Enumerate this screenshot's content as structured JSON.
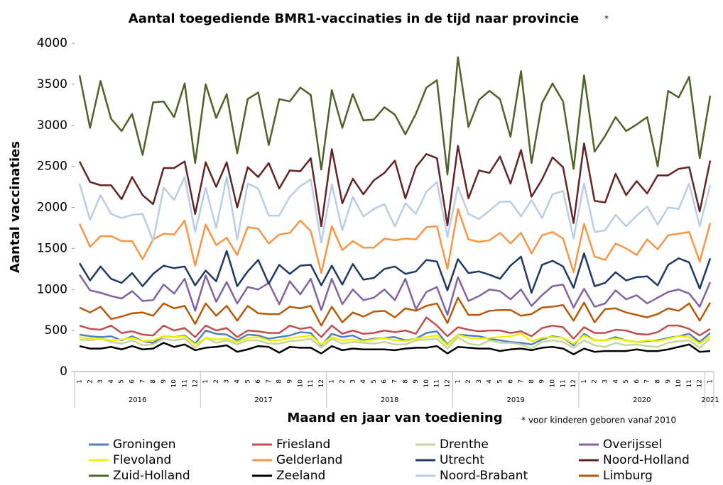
{
  "chart_data": {
    "type": "line",
    "title": "Aantal toegediende BMR1-vaccinaties in de tijd naar provincie",
    "title_mark": "*",
    "x_label": "Maand en jaar van toediening",
    "y_label": "Aantal vaccinaties",
    "footnote": "* voor kinderen geboren vanaf 2010",
    "categories": [
      "1",
      "2",
      "3",
      "4",
      "5",
      "6",
      "7",
      "8",
      "9",
      "10",
      "11",
      "12",
      "1",
      "2",
      "3",
      "4",
      "5",
      "6",
      "7",
      "8",
      "9",
      "10",
      "11",
      "12",
      "1",
      "2",
      "3",
      "4",
      "5",
      "6",
      "7",
      "8",
      "9",
      "10",
      "11",
      "12",
      "1",
      "2",
      "3",
      "4",
      "5",
      "6",
      "7",
      "8",
      "9",
      "10",
      "11",
      "12",
      "1",
      "2",
      "3",
      "4",
      "5",
      "6",
      "7",
      "8",
      "9",
      "10",
      "11",
      "12",
      "1"
    ],
    "year_groups": [
      "2016",
      "2017",
      "2018",
      "2019",
      "2020",
      "2021"
    ],
    "ylim": [
      0,
      4000
    ],
    "yticks": [
      0,
      500,
      1000,
      1500,
      2000,
      2500,
      3000,
      3500,
      4000
    ],
    "series": [
      {
        "name": "Groningen",
        "color": "#4f81bd",
        "values": [
          450,
          430,
          420,
          430,
          380,
          430,
          370,
          350,
          430,
          420,
          440,
          340,
          500,
          460,
          450,
          380,
          450,
          440,
          400,
          420,
          440,
          480,
          470,
          320,
          460,
          420,
          440,
          380,
          400,
          410,
          420,
          380,
          400,
          470,
          490,
          330,
          450,
          440,
          430,
          400,
          380,
          360,
          350,
          330,
          390,
          430,
          410,
          320,
          460,
          380,
          380,
          420,
          380,
          360,
          370,
          380,
          410,
          430,
          460,
          360,
          470
        ]
      },
      {
        "name": "Friesland",
        "color": "#c0504d",
        "values": [
          560,
          520,
          510,
          560,
          470,
          490,
          450,
          440,
          560,
          500,
          530,
          420,
          560,
          500,
          530,
          420,
          500,
          490,
          470,
          470,
          560,
          520,
          540,
          420,
          560,
          460,
          500,
          460,
          470,
          500,
          480,
          500,
          460,
          660,
          560,
          430,
          540,
          510,
          490,
          500,
          500,
          470,
          490,
          430,
          530,
          560,
          540,
          400,
          540,
          470,
          470,
          510,
          500,
          460,
          450,
          480,
          560,
          560,
          520,
          440,
          520
        ]
      },
      {
        "name": "Drenthe",
        "color": "#c3d69b",
        "values": [
          390,
          380,
          400,
          360,
          340,
          380,
          320,
          330,
          400,
          380,
          400,
          290,
          410,
          350,
          380,
          330,
          380,
          380,
          340,
          340,
          370,
          380,
          400,
          290,
          400,
          340,
          360,
          350,
          340,
          360,
          330,
          330,
          380,
          390,
          400,
          280,
          420,
          340,
          320,
          380,
          350,
          350,
          330,
          280,
          360,
          380,
          360,
          290,
          380,
          320,
          300,
          350,
          320,
          330,
          310,
          300,
          350,
          370,
          380,
          290,
          400
        ]
      },
      {
        "name": "Overijssel",
        "color": "#8064a2",
        "values": [
          1180,
          990,
          960,
          920,
          890,
          980,
          860,
          870,
          1060,
          950,
          1130,
          740,
          1170,
          850,
          1090,
          830,
          1030,
          1000,
          1080,
          820,
          1100,
          940,
          1130,
          750,
          1130,
          820,
          1000,
          870,
          900,
          1000,
          870,
          1130,
          760,
          970,
          1030,
          690,
          1150,
          860,
          920,
          1000,
          980,
          880,
          1000,
          800,
          930,
          1040,
          1060,
          780,
          1010,
          790,
          830,
          990,
          880,
          930,
          830,
          900,
          970,
          1000,
          950,
          790,
          1090
        ]
      },
      {
        "name": "Flevoland",
        "color": "#f0f000",
        "values": [
          420,
          400,
          400,
          380,
          390,
          410,
          370,
          380,
          430,
          420,
          430,
          330,
          410,
          390,
          400,
          360,
          410,
          420,
          380,
          380,
          410,
          420,
          440,
          330,
          420,
          380,
          390,
          370,
          390,
          410,
          380,
          370,
          400,
          420,
          440,
          320,
          450,
          410,
          400,
          410,
          420,
          430,
          460,
          370,
          410,
          420,
          410,
          340,
          440,
          380,
          380,
          400,
          380,
          360,
          380,
          370,
          400,
          430,
          420,
          340,
          430
        ]
      },
      {
        "name": "Gelderland",
        "color": "#f79646",
        "values": [
          1800,
          1520,
          1650,
          1650,
          1590,
          1590,
          1370,
          1610,
          1680,
          1670,
          1840,
          1290,
          1790,
          1540,
          1630,
          1420,
          1760,
          1740,
          1560,
          1670,
          1690,
          1840,
          1710,
          1200,
          1770,
          1480,
          1590,
          1510,
          1510,
          1620,
          1600,
          1620,
          1610,
          1760,
          1770,
          1250,
          1980,
          1610,
          1580,
          1600,
          1690,
          1560,
          1690,
          1440,
          1660,
          1700,
          1620,
          1210,
          1800,
          1400,
          1360,
          1560,
          1500,
          1420,
          1610,
          1490,
          1660,
          1680,
          1700,
          1340,
          1810
        ]
      },
      {
        "name": "Utrecht",
        "color": "#1f3864",
        "values": [
          1320,
          1110,
          1280,
          1130,
          1080,
          1200,
          1040,
          1190,
          1290,
          1260,
          1280,
          1050,
          1230,
          1100,
          1470,
          1040,
          1220,
          1360,
          1070,
          1300,
          1190,
          1290,
          1300,
          1050,
          1290,
          1060,
          1310,
          1120,
          1140,
          1250,
          1280,
          1190,
          1220,
          1360,
          1340,
          990,
          1370,
          1200,
          1220,
          1180,
          1130,
          1290,
          1400,
          960,
          1300,
          1350,
          1280,
          1020,
          1440,
          1040,
          1080,
          1210,
          1110,
          1150,
          1160,
          1050,
          1300,
          1380,
          1330,
          1010,
          1380
        ]
      },
      {
        "name": "Noord-Holland",
        "color": "#632523",
        "values": [
          2560,
          2310,
          2270,
          2270,
          2100,
          2370,
          2150,
          2040,
          2480,
          2480,
          2560,
          1920,
          2550,
          2250,
          2550,
          2000,
          2490,
          2370,
          2540,
          2230,
          2450,
          2440,
          2600,
          1770,
          2710,
          2050,
          2350,
          2160,
          2330,
          2420,
          2570,
          2110,
          2490,
          2650,
          2600,
          1780,
          2750,
          2110,
          2450,
          2420,
          2620,
          2290,
          2700,
          2130,
          2340,
          2610,
          2490,
          1810,
          2780,
          2080,
          2060,
          2410,
          2150,
          2320,
          2170,
          2390,
          2390,
          2470,
          2490,
          1950,
          2570
        ]
      },
      {
        "name": "Zuid-Holland",
        "color": "#4f6228",
        "values": [
          3610,
          2970,
          3540,
          3080,
          2930,
          3140,
          2640,
          3280,
          3290,
          3100,
          3510,
          2540,
          3500,
          3090,
          3380,
          2660,
          3320,
          3400,
          2760,
          3320,
          3290,
          3460,
          3370,
          2460,
          3430,
          2970,
          3380,
          3060,
          3070,
          3220,
          3130,
          2890,
          3140,
          3460,
          3550,
          2400,
          3830,
          2980,
          3310,
          3420,
          3320,
          2860,
          3660,
          2540,
          3270,
          3510,
          3290,
          2470,
          3610,
          2680,
          2870,
          3100,
          2930,
          3010,
          3100,
          2500,
          3420,
          3340,
          3590,
          2600,
          3360
        ]
      },
      {
        "name": "Zeeland",
        "color": "#000000",
        "values": [
          310,
          280,
          280,
          300,
          270,
          310,
          270,
          280,
          350,
          300,
          330,
          260,
          290,
          300,
          320,
          240,
          270,
          310,
          300,
          230,
          300,
          290,
          290,
          220,
          310,
          260,
          280,
          270,
          270,
          270,
          260,
          280,
          290,
          290,
          310,
          220,
          300,
          290,
          280,
          280,
          250,
          270,
          280,
          260,
          290,
          300,
          280,
          210,
          280,
          240,
          250,
          250,
          250,
          270,
          250,
          250,
          270,
          300,
          330,
          240,
          250
        ]
      },
      {
        "name": "Noord-Brabant",
        "color": "#b9cde5",
        "values": [
          2290,
          1850,
          2150,
          1920,
          1870,
          1910,
          1920,
          1590,
          2240,
          2090,
          2370,
          1700,
          2240,
          1750,
          2370,
          1610,
          2290,
          2230,
          1900,
          1900,
          2130,
          2260,
          2340,
          1570,
          2280,
          1720,
          2130,
          1890,
          1980,
          2040,
          1770,
          2050,
          1920,
          2190,
          2310,
          1640,
          2250,
          1920,
          1860,
          1960,
          2070,
          2070,
          1890,
          2090,
          1870,
          2160,
          2200,
          1620,
          2290,
          1700,
          1720,
          1910,
          1770,
          1900,
          2010,
          1790,
          2000,
          1980,
          2290,
          1770,
          2270
        ]
      },
      {
        "name": "Limburg",
        "color": "#b45a0c",
        "values": [
          780,
          720,
          790,
          640,
          670,
          710,
          720,
          680,
          830,
          770,
          800,
          580,
          830,
          680,
          800,
          620,
          800,
          710,
          700,
          700,
          790,
          770,
          800,
          560,
          790,
          600,
          720,
          670,
          730,
          740,
          660,
          770,
          740,
          800,
          830,
          590,
          900,
          690,
          690,
          740,
          750,
          750,
          680,
          700,
          780,
          790,
          810,
          620,
          840,
          600,
          760,
          770,
          720,
          690,
          660,
          700,
          770,
          740,
          830,
          620,
          840
        ]
      }
    ]
  }
}
